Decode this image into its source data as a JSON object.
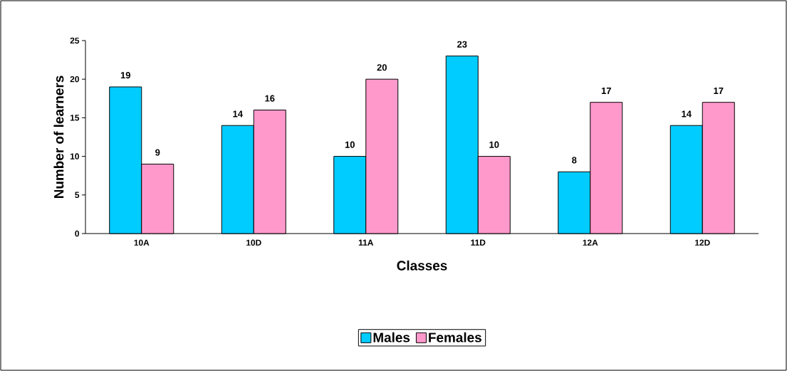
{
  "chart_data": {
    "type": "bar",
    "xlabel": "Classes",
    "ylabel": "Number of learners",
    "categories": [
      "10A",
      "10D",
      "11A",
      "11D",
      "12A",
      "12D"
    ],
    "series": [
      {
        "name": "Males",
        "color": "#00ccff",
        "values": [
          19,
          14,
          10,
          23,
          8,
          14
        ]
      },
      {
        "name": "Females",
        "color": "#ff99cc",
        "values": [
          9,
          16,
          20,
          10,
          17,
          17
        ]
      }
    ],
    "ylim": [
      0,
      25
    ],
    "yticks": [
      0,
      5,
      10,
      15,
      20,
      25
    ],
    "data_labels": true,
    "legend": "bottom",
    "grid": false
  }
}
